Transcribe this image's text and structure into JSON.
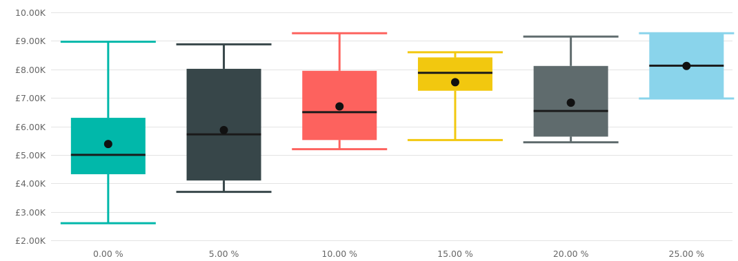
{
  "chart_data": {
    "type": "box",
    "title": "",
    "xlabel": "",
    "ylabel": "",
    "ylim": [
      2000,
      10000
    ],
    "y_ticks": [
      {
        "value": 10000,
        "label": "10.00K"
      },
      {
        "value": 9000,
        "label": "£9.00K"
      },
      {
        "value": 8000,
        "label": "£8.00K"
      },
      {
        "value": 7000,
        "label": "£7.00K"
      },
      {
        "value": 6000,
        "label": "£6.00K"
      },
      {
        "value": 5000,
        "label": "£5.00K"
      },
      {
        "value": 4000,
        "label": "£4.00K"
      },
      {
        "value": 3000,
        "label": "£3.00K"
      },
      {
        "value": 2000,
        "label": "£2.00K"
      }
    ],
    "grid": true,
    "categories": [
      "0.00 %",
      "5.00 %",
      "10.00 %",
      "15.00 %",
      "20.00 %",
      "25.00 %"
    ],
    "boxes": [
      {
        "category": "0.00 %",
        "whisker_low": 2600,
        "q1": 4320,
        "median": 5000,
        "q3": 6300,
        "whisker_high": 8970,
        "mean": 5380,
        "color": "#01B8AA"
      },
      {
        "category": "5.00 %",
        "whisker_low": 3700,
        "q1": 4100,
        "median": 5720,
        "q3": 8020,
        "whisker_high": 8880,
        "mean": 5870,
        "color": "#374649"
      },
      {
        "category": "10.00 %",
        "whisker_low": 5200,
        "q1": 5520,
        "median": 6500,
        "q3": 7950,
        "whisker_high": 9270,
        "mean": 6700,
        "color": "#FD625E"
      },
      {
        "category": "15.00 %",
        "whisker_low": 5520,
        "q1": 7250,
        "median": 7880,
        "q3": 8420,
        "whisker_high": 8600,
        "mean": 7550,
        "color": "#F2C80F"
      },
      {
        "category": "20.00 %",
        "whisker_low": 5440,
        "q1": 5640,
        "median": 6540,
        "q3": 8120,
        "whisker_high": 9150,
        "mean": 6830,
        "color": "#5F6B6D"
      },
      {
        "category": "25.00 %",
        "whisker_low": 6980,
        "q1": 6980,
        "median": 8130,
        "q3": 9270,
        "whisker_high": 9270,
        "mean": 8120,
        "color": "#8AD4EB"
      }
    ]
  },
  "colors": {
    "gridline": "#e3e3e3",
    "tick_text": "#666666",
    "median_line": "#1a1a1a",
    "mean_dot": "#111111"
  }
}
